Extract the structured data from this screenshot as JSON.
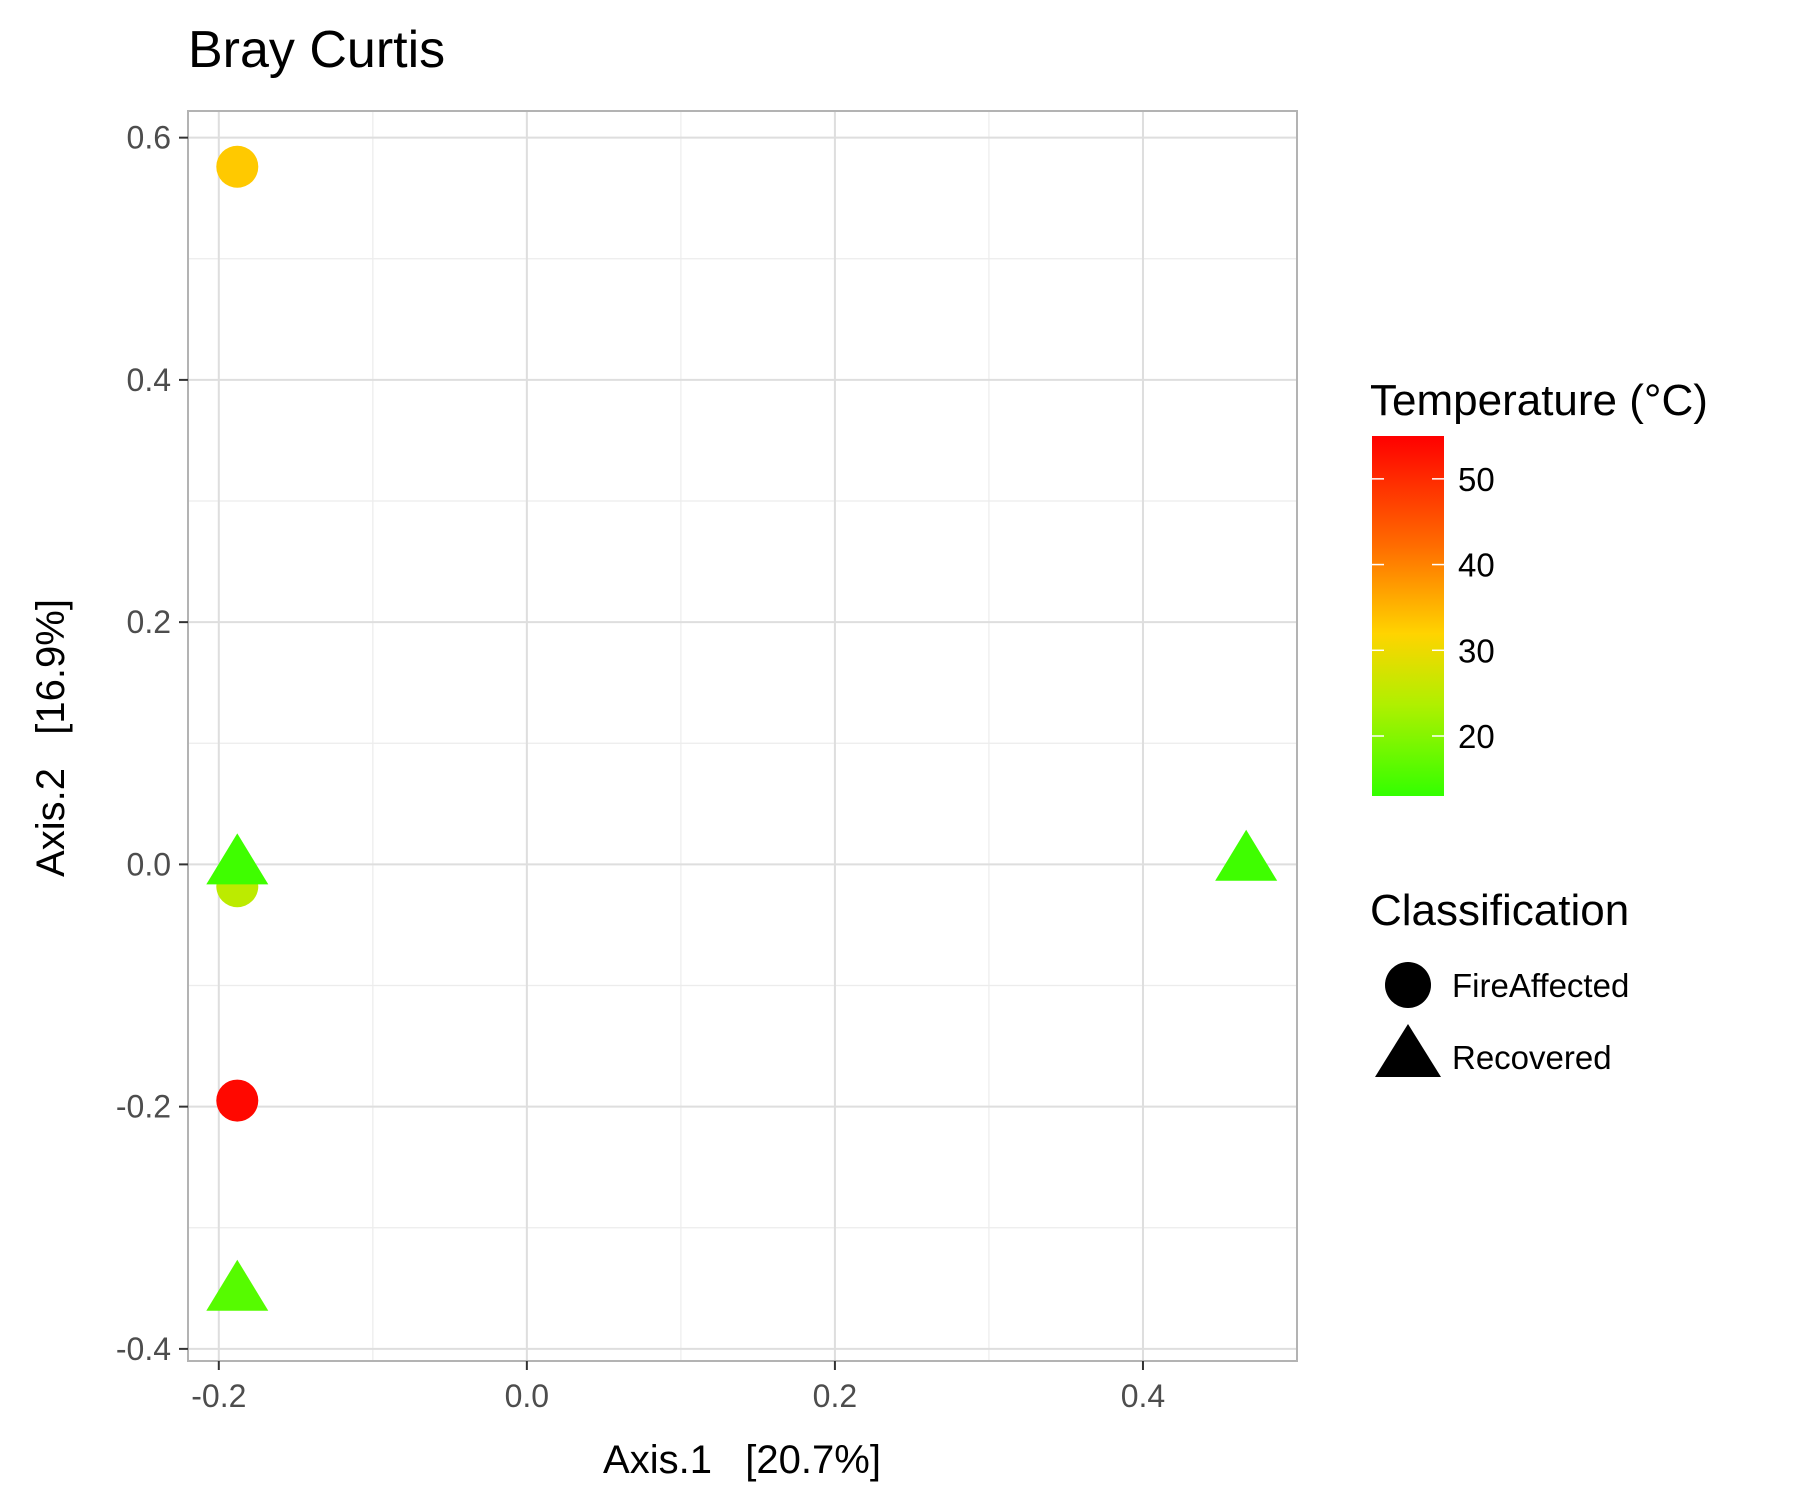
{
  "chart_data": {
    "type": "scatter",
    "title": "Bray Curtis",
    "xlabel": "Axis.1   [20.7%]",
    "ylabel": "Axis.2   [16.9%]",
    "xlim": [
      -0.22,
      0.5
    ],
    "ylim": [
      -0.41,
      0.622
    ],
    "x_ticks": [
      -0.2,
      0.0,
      0.2,
      0.4
    ],
    "x_tick_labels": [
      "-0.2",
      "0.0",
      "0.2",
      "0.4"
    ],
    "y_ticks": [
      -0.4,
      -0.2,
      0.0,
      0.2,
      0.4,
      0.6
    ],
    "y_tick_labels": [
      "-0.4",
      "-0.2",
      "0.0",
      "0.2",
      "0.4",
      "0.6"
    ],
    "grid": true,
    "points": [
      {
        "x": -0.188,
        "y": 0.576,
        "temperature": 33,
        "classification": "FireAffected"
      },
      {
        "x": -0.188,
        "y": -0.018,
        "temperature": 25,
        "classification": "FireAffected"
      },
      {
        "x": -0.188,
        "y": -0.195,
        "temperature": 54,
        "classification": "FireAffected"
      },
      {
        "x": -0.188,
        "y": 0.0,
        "temperature": 14,
        "classification": "Recovered"
      },
      {
        "x": -0.188,
        "y": -0.352,
        "temperature": 16,
        "classification": "Recovered"
      },
      {
        "x": 0.467,
        "y": 0.003,
        "temperature": 14,
        "classification": "Recovered"
      }
    ],
    "color_legend": {
      "title": "Temperature (°C)",
      "range": [
        13,
        55
      ],
      "ticks": [
        20,
        30,
        40,
        50
      ],
      "tick_labels": [
        "20",
        "30",
        "40",
        "50"
      ],
      "colors": [
        "#33ff00",
        "#ffd700",
        "#ff6600",
        "#ff0000"
      ]
    },
    "shape_legend": {
      "title": "Classification",
      "items": [
        {
          "label": "FireAffected",
          "shape": "circle"
        },
        {
          "label": "Recovered",
          "shape": "triangle"
        }
      ]
    }
  }
}
